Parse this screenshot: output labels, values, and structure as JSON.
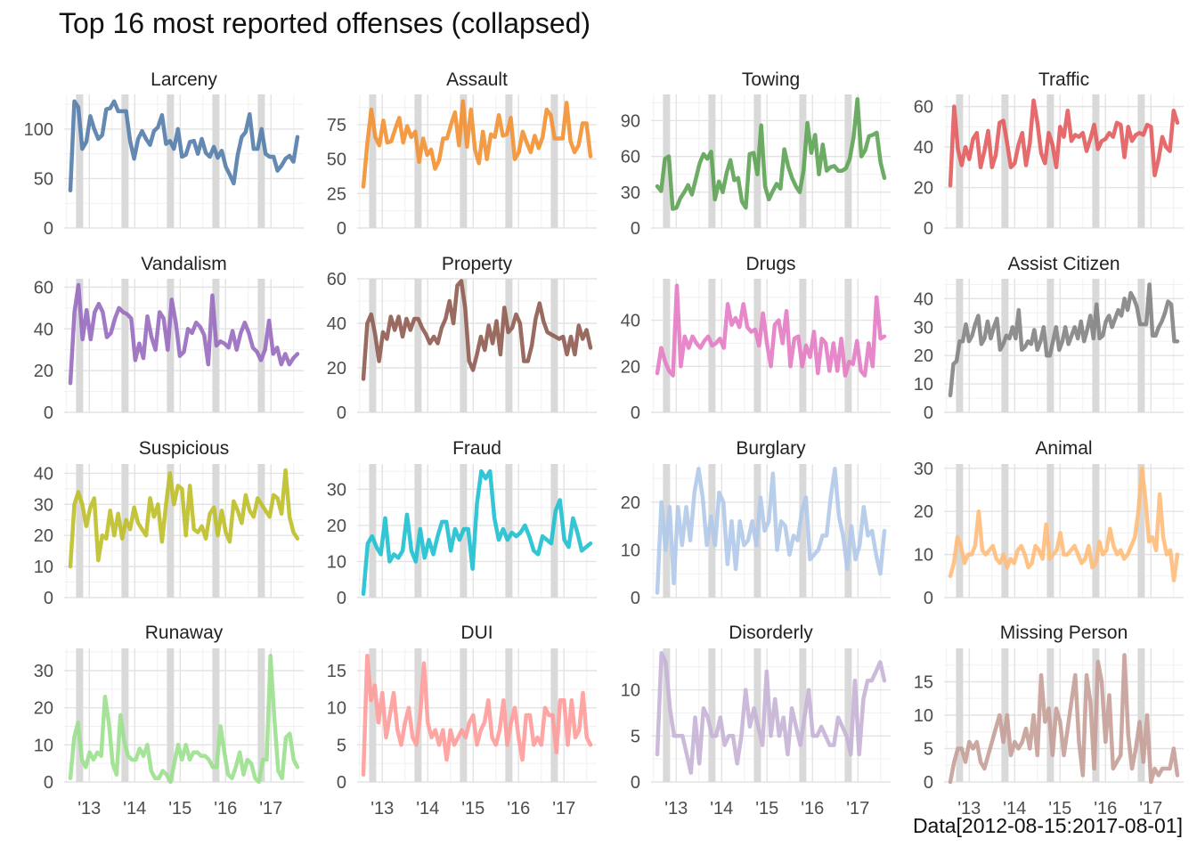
{
  "title": "Top 16 most reported offenses (collapsed)",
  "caption": "Data[2012-08-15:2017-08-01]",
  "chart_data": {
    "type": "line",
    "layout": "facet-wrap 4x4",
    "grid": true,
    "x_tick_labels": [
      "'13",
      "'14",
      "'15",
      "'16",
      "'17"
    ],
    "x_range": [
      "2012-08",
      "2017-08"
    ],
    "shaded_months": [
      "2012-10",
      "2013-10",
      "2014-10",
      "2015-10",
      "2016-10"
    ],
    "shade_color": "#d9d9d9",
    "panels": [
      {
        "name": "Larceny",
        "color": "#4e79a7",
        "yticks": [
          0,
          50,
          100
        ],
        "ylim": [
          0,
          135
        ],
        "values": [
          38,
          128,
          122,
          80,
          87,
          113,
          100,
          90,
          94,
          120,
          121,
          128,
          118,
          118,
          118,
          88,
          70,
          90,
          98,
          90,
          84,
          98,
          102,
          114,
          85,
          88,
          80,
          100,
          72,
          74,
          87,
          88,
          75,
          90,
          76,
          72,
          82,
          71,
          78,
          62,
          54,
          45,
          74,
          92,
          97,
          115,
          80,
          80,
          100,
          75,
          72,
          72,
          58,
          63,
          70,
          73,
          67,
          92
        ]
      },
      {
        "name": "Assault",
        "color": "#f28e2b",
        "yticks": [
          0,
          25,
          50,
          75
        ],
        "ylim": [
          0,
          97
        ],
        "values": [
          30,
          62,
          86,
          66,
          60,
          78,
          62,
          63,
          72,
          80,
          62,
          74,
          66,
          70,
          48,
          65,
          53,
          57,
          43,
          49,
          65,
          65,
          75,
          84,
          60,
          92,
          59,
          86,
          57,
          47,
          70,
          50,
          68,
          66,
          82,
          67,
          68,
          80,
          50,
          55,
          70,
          62,
          55,
          67,
          58,
          66,
          86,
          82,
          65,
          65,
          65,
          91,
          63,
          55,
          60,
          76,
          76,
          52
        ]
      },
      {
        "name": "Towing",
        "color": "#59a14f",
        "yticks": [
          0,
          30,
          60,
          90
        ],
        "ylim": [
          0,
          112
        ],
        "values": [
          35,
          31,
          58,
          60,
          16,
          17,
          25,
          30,
          36,
          28,
          41,
          54,
          62,
          58,
          64,
          24,
          39,
          30,
          46,
          57,
          40,
          42,
          22,
          17,
          62,
          63,
          45,
          86,
          35,
          24,
          31,
          37,
          33,
          66,
          52,
          42,
          35,
          30,
          48,
          88,
          63,
          78,
          45,
          70,
          48,
          51,
          52,
          48,
          48,
          50,
          58,
          76,
          108,
          60,
          65,
          77,
          78,
          80,
          55,
          42
        ]
      },
      {
        "name": "Traffic",
        "color": "#e15759",
        "yticks": [
          0,
          20,
          40,
          60
        ],
        "ylim": [
          0,
          66
        ],
        "values": [
          21,
          60,
          39,
          31,
          40,
          34,
          44,
          47,
          30,
          38,
          48,
          30,
          36,
          52,
          53,
          42,
          30,
          32,
          41,
          47,
          31,
          42,
          63,
          52,
          37,
          32,
          47,
          41,
          30,
          50,
          45,
          58,
          43,
          46,
          45,
          47,
          38,
          44,
          51,
          39,
          43,
          44,
          47,
          45,
          52,
          51,
          35,
          50,
          43,
          46,
          47,
          46,
          51,
          50,
          26,
          34,
          45,
          40,
          38,
          58,
          52
        ]
      },
      {
        "name": "Vandalism",
        "color": "#9467bd",
        "yticks": [
          0,
          20,
          40,
          60
        ],
        "ylim": [
          0,
          64
        ],
        "values": [
          14,
          48,
          61,
          35,
          49,
          35,
          48,
          52,
          48,
          36,
          38,
          45,
          50,
          48,
          47,
          45,
          25,
          33,
          26,
          46,
          36,
          30,
          48,
          45,
          30,
          54,
          43,
          27,
          29,
          40,
          38,
          43,
          41,
          37,
          23,
          56,
          32,
          34,
          33,
          31,
          39,
          30,
          38,
          43,
          38,
          31,
          29,
          25,
          30,
          44,
          28,
          31,
          23,
          28,
          23,
          26,
          28
        ]
      },
      {
        "name": "Property",
        "color": "#8c564b",
        "yticks": [
          0,
          20,
          40,
          60
        ],
        "ylim": [
          0,
          60
        ],
        "values": [
          15,
          40,
          44,
          35,
          23,
          36,
          33,
          43,
          37,
          43,
          34,
          42,
          37,
          42,
          42,
          38,
          35,
          31,
          34,
          31,
          38,
          42,
          50,
          40,
          57,
          59,
          47,
          23,
          19,
          26,
          34,
          28,
          39,
          31,
          41,
          26,
          47,
          36,
          38,
          44,
          40,
          23,
          23,
          30,
          42,
          49,
          41,
          36,
          35,
          34,
          33,
          34,
          26,
          34,
          26,
          39,
          33,
          37,
          29
        ]
      },
      {
        "name": "Drugs",
        "color": "#e377c2",
        "yticks": [
          0,
          20,
          40
        ],
        "ylim": [
          0,
          58
        ],
        "values": [
          17,
          28,
          22,
          18,
          16,
          55,
          20,
          33,
          28,
          33,
          30,
          28,
          31,
          33,
          29,
          30,
          32,
          28,
          47,
          38,
          41,
          37,
          47,
          37,
          35,
          36,
          29,
          43,
          30,
          20,
          38,
          40,
          30,
          44,
          20,
          32,
          33,
          20,
          29,
          24,
          35,
          17,
          32,
          30,
          18,
          30,
          18,
          32,
          16,
          22,
          21,
          31,
          18,
          16,
          30,
          20,
          50,
          32,
          33
        ]
      },
      {
        "name": "Assist Citizen",
        "color": "#7f7f7f",
        "yticks": [
          0,
          10,
          20,
          30,
          40
        ],
        "ylim": [
          0,
          47
        ],
        "values": [
          6,
          17,
          18,
          25,
          25,
          31,
          25,
          27,
          31,
          34,
          24,
          26,
          32,
          26,
          30,
          33,
          22,
          24,
          27,
          26,
          30,
          26,
          36,
          22,
          23,
          25,
          24,
          29,
          22,
          25,
          30,
          20,
          20,
          25,
          30,
          22,
          25,
          30,
          24,
          27,
          30,
          26,
          32,
          25,
          29,
          34,
          26,
          38,
          26,
          27,
          32,
          34,
          30,
          33,
          36,
          34,
          40,
          36,
          42,
          40,
          37,
          31,
          31,
          31,
          45,
          27,
          27,
          30,
          32,
          35,
          39,
          38,
          25,
          25
        ]
      },
      {
        "name": "Suspicious",
        "color": "#bcbd22",
        "yticks": [
          0,
          10,
          20,
          30,
          40
        ],
        "ylim": [
          0,
          43
        ],
        "values": [
          10,
          30,
          34,
          30,
          23,
          29,
          32,
          12,
          20,
          19,
          28,
          20,
          27,
          19,
          25,
          22,
          29,
          24,
          22,
          20,
          32,
          26,
          30,
          18,
          30,
          40,
          30,
          36,
          35,
          20,
          36,
          22,
          21,
          23,
          19,
          27,
          29,
          20,
          28,
          21,
          18,
          31,
          28,
          24,
          33,
          28,
          26,
          32,
          30,
          28,
          26,
          33,
          32,
          27,
          41,
          26,
          21,
          19
        ]
      },
      {
        "name": "Fraud",
        "color": "#17becf",
        "yticks": [
          0,
          10,
          20,
          30
        ],
        "ylim": [
          0,
          37
        ],
        "values": [
          1,
          15,
          17,
          14,
          12,
          22,
          10,
          12,
          11,
          13,
          23,
          13,
          10,
          19,
          11,
          16,
          12,
          17,
          21,
          21,
          13,
          19,
          16,
          19,
          19,
          8,
          26,
          35,
          33,
          35,
          22,
          16,
          19,
          16,
          18,
          17,
          18,
          20,
          17,
          13,
          12,
          17,
          16,
          15,
          24,
          27,
          16,
          14,
          22,
          18,
          13,
          14,
          15
        ]
      },
      {
        "name": "Burglary",
        "color": "#aec7e8",
        "yticks": [
          0,
          10,
          20
        ],
        "ylim": [
          0,
          28
        ],
        "values": [
          1,
          20,
          10,
          19,
          3,
          19,
          11,
          19,
          12,
          22,
          27,
          21,
          11,
          17,
          11,
          22,
          20,
          7,
          16,
          6,
          16,
          11,
          12,
          16,
          11,
          21,
          14,
          16,
          26,
          10,
          16,
          15,
          9,
          13,
          12,
          18,
          21,
          8,
          9,
          10,
          13,
          13,
          21,
          27,
          17,
          13,
          6,
          15,
          8,
          11,
          19,
          13,
          14,
          9,
          5,
          14
        ]
      },
      {
        "name": "Animal",
        "color": "#ffbb78",
        "yticks": [
          0,
          10,
          20,
          30
        ],
        "ylim": [
          0,
          31
        ],
        "values": [
          5,
          8,
          14,
          12,
          8,
          10,
          10,
          12,
          20,
          11,
          10,
          11,
          12,
          9,
          8,
          10,
          7,
          9,
          8,
          11,
          12,
          10,
          7,
          8,
          12,
          11,
          9,
          17,
          9,
          10,
          11,
          15,
          10,
          10,
          11,
          12,
          10,
          8,
          9,
          12,
          7,
          8,
          13,
          10,
          11,
          16,
          12,
          10,
          11,
          9,
          10,
          12,
          14,
          20,
          30,
          23,
          13,
          14,
          11,
          24,
          14,
          10,
          11,
          4,
          10
        ]
      },
      {
        "name": "Runaway",
        "color": "#98df8a",
        "yticks": [
          0,
          10,
          20,
          30
        ],
        "ylim": [
          0,
          36
        ],
        "values": [
          1,
          12,
          16,
          6,
          4,
          8,
          6,
          8,
          7,
          23,
          16,
          5,
          2,
          18,
          11,
          7,
          6,
          6,
          9,
          7,
          10,
          3,
          1,
          1,
          3,
          2,
          0,
          5,
          10,
          6,
          10,
          6,
          8,
          8,
          7,
          7,
          6,
          4,
          4,
          15,
          8,
          2,
          1,
          4,
          8,
          2,
          6,
          5,
          1,
          0,
          6,
          6,
          34,
          17,
          3,
          1,
          12,
          13,
          6,
          4
        ]
      },
      {
        "name": "DUI",
        "color": "#ff9896",
        "yticks": [
          0,
          5,
          10,
          15
        ],
        "ylim": [
          0,
          18
        ],
        "values": [
          1,
          17,
          11,
          13,
          8,
          12,
          6,
          9,
          12,
          7,
          5,
          8,
          10,
          6,
          5,
          9,
          16,
          8,
          6,
          7,
          5,
          7,
          3,
          7,
          5,
          6,
          7,
          6,
          8,
          9,
          5,
          7,
          8,
          11,
          6,
          5,
          7,
          11,
          5,
          8,
          10,
          6,
          3,
          9,
          9,
          5,
          6,
          5,
          10,
          9,
          9,
          4,
          11,
          11,
          5,
          11,
          6,
          7,
          12,
          6,
          5
        ]
      },
      {
        "name": "Disorderly",
        "color": "#c5b0d5",
        "yticks": [
          0,
          5,
          10
        ],
        "ylim": [
          0,
          14.5
        ],
        "values": [
          3,
          14,
          13,
          8,
          5,
          5,
          5,
          3,
          1,
          7,
          2,
          8,
          7,
          5,
          5,
          7,
          4,
          5,
          5,
          2,
          5,
          10,
          6,
          8,
          6,
          4,
          12,
          5,
          9,
          5,
          7,
          3,
          8,
          6,
          4,
          7,
          10,
          5,
          5,
          6,
          5,
          4,
          4,
          7,
          6,
          5,
          3,
          11,
          3,
          9,
          11,
          11,
          12,
          13,
          11
        ]
      },
      {
        "name": "Missing Person",
        "color": "#c49c94",
        "yticks": [
          0,
          5,
          10,
          15
        ],
        "ylim": [
          0,
          20
        ],
        "values": [
          0,
          3,
          5,
          5,
          3,
          6,
          5,
          6,
          3,
          2,
          4,
          6,
          8,
          10,
          6,
          10,
          4,
          6,
          5,
          6,
          8,
          5,
          10,
          4,
          16,
          9,
          11,
          4,
          11,
          9,
          4,
          8,
          12,
          16,
          6,
          1,
          16,
          12,
          2,
          18,
          15,
          6,
          13,
          2,
          3,
          4,
          19,
          7,
          2,
          5,
          9,
          3,
          10,
          0,
          2,
          1,
          2,
          2,
          2,
          5,
          1
        ]
      }
    ]
  }
}
